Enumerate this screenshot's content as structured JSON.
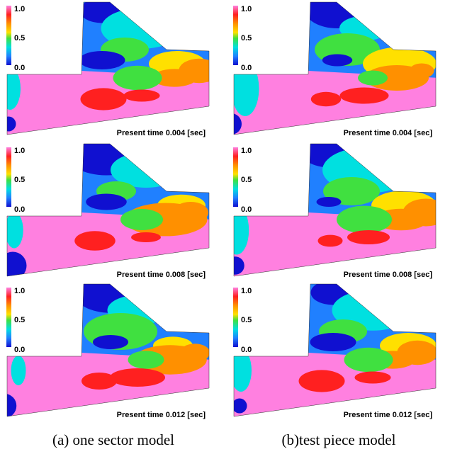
{
  "panels": [
    {
      "colorbar": [
        "1.0",
        "0.5",
        "0.0"
      ],
      "time": "Present time  0.004  [sec]"
    },
    {
      "colorbar": [
        "1.0",
        "0.5",
        "0.0"
      ],
      "time": "Present time  0.004  [sec]"
    },
    {
      "colorbar": [
        "1.0",
        "0.5",
        "0.0"
      ],
      "time": "Present time  0.008  [sec]"
    },
    {
      "colorbar": [
        "1.0",
        "0.5",
        "0.0"
      ],
      "time": "Present time  0.008  [sec]"
    },
    {
      "colorbar": [
        "1.0",
        "0.5",
        "0.0"
      ],
      "time": "Present time  0.012  [sec]"
    },
    {
      "colorbar": [
        "1.0",
        "0.5",
        "0.0"
      ],
      "time": "Present time  0.012  [sec]"
    }
  ],
  "captions": [
    "(a) one sector model",
    "(b)test piece model"
  ]
}
